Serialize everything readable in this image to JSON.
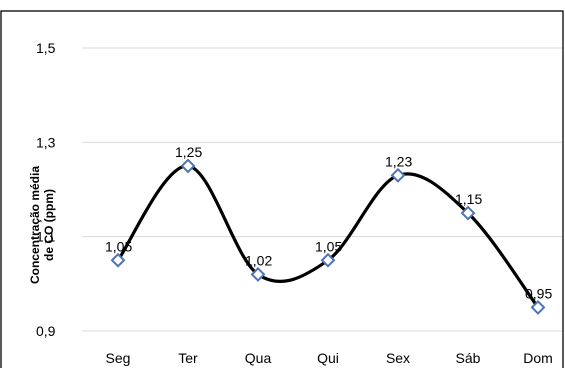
{
  "chart_data": {
    "type": "line",
    "title": "",
    "xlabel": "",
    "ylabel_lines": [
      "Concentração média",
      "de CO (ppm)"
    ],
    "categories": [
      "Seg",
      "Ter",
      "Qua",
      "Qui",
      "Sex",
      "Sáb",
      "Dom"
    ],
    "values": [
      1.05,
      1.25,
      1.02,
      1.05,
      1.23,
      1.15,
      0.95
    ],
    "data_labels": [
      "1,05",
      "1,25",
      "1,02",
      "1,05",
      "1,23",
      "1,15",
      "0,95"
    ],
    "ylim": [
      0.9,
      1.5
    ],
    "yticks": [
      0.9,
      1.1,
      1.3,
      1.5
    ],
    "ytick_labels": [
      "0,9",
      "1,1",
      "1,3",
      "1,5"
    ],
    "smooth": true,
    "grid": true,
    "line_color": "#000000",
    "marker": "diamond",
    "marker_color": "#4f74b5"
  }
}
